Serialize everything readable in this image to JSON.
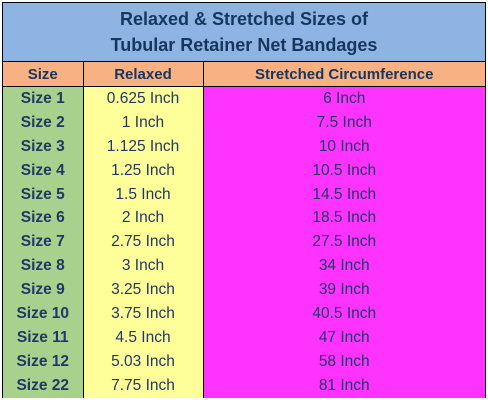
{
  "title": {
    "line1": "Relaxed & Stretched Sizes of",
    "line2": "Tubular Retainer Net Bandages"
  },
  "headers": {
    "size": "Size",
    "relaxed": "Relaxed",
    "stretched": "Stretched Circumference"
  },
  "rows": [
    {
      "size": "Size 1",
      "relaxed": "0.625 Inch",
      "stretched": "6 Inch"
    },
    {
      "size": "Size 2",
      "relaxed": "1 Inch",
      "stretched": "7.5 Inch"
    },
    {
      "size": "Size 3",
      "relaxed": "1.125 Inch",
      "stretched": "10 Inch"
    },
    {
      "size": "Size 4",
      "relaxed": "1.25 Inch",
      "stretched": "10.5 Inch"
    },
    {
      "size": "Size 5",
      "relaxed": "1.5 Inch",
      "stretched": "14.5 Inch"
    },
    {
      "size": "Size 6",
      "relaxed": "2 Inch",
      "stretched": "18.5 Inch"
    },
    {
      "size": "Size 7",
      "relaxed": "2.75 Inch",
      "stretched": "27.5 Inch"
    },
    {
      "size": "Size 8",
      "relaxed": "3 Inch",
      "stretched": "34 Inch"
    },
    {
      "size": "Size 9",
      "relaxed": "3.25 Inch",
      "stretched": "39 Inch"
    },
    {
      "size": "Size 10",
      "relaxed": "3.75 Inch",
      "stretched": "40.5 Inch"
    },
    {
      "size": "Size 11",
      "relaxed": "4.5 Inch",
      "stretched": "47 Inch"
    },
    {
      "size": "Size 12",
      "relaxed": "5.03 Inch",
      "stretched": "58 Inch"
    },
    {
      "size": "Size 22",
      "relaxed": "7.75 Inch",
      "stretched": "81 Inch"
    }
  ],
  "colors": {
    "title_bg": "#8db4e2",
    "header_bg": "#f8b183",
    "size_col_bg": "#a9d18e",
    "relaxed_col_bg": "#ffff99",
    "stretched_col_bg": "#ff33ff",
    "text": "#1f3864"
  }
}
